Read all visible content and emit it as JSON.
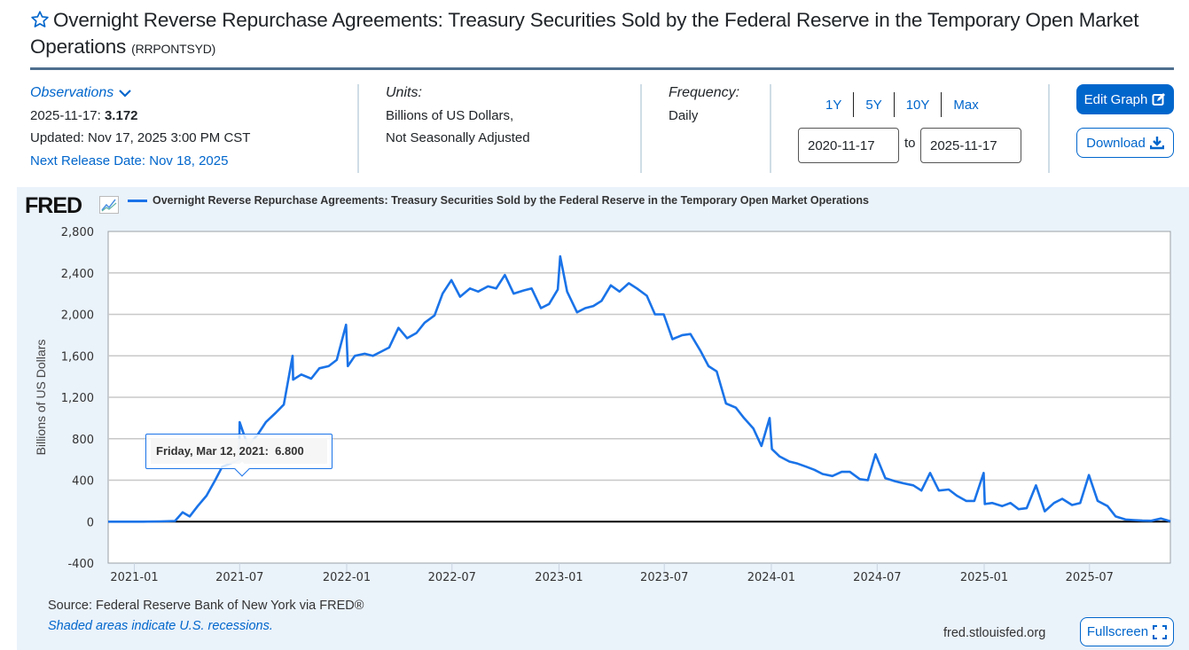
{
  "header": {
    "title": "Overnight Reverse Repurchase Agreements: Treasury Securities Sold by the Federal Reserve in the Temporary Open Market Operations",
    "series_id": "(RRPONTSYD)",
    "favorite_icon": "star-outline-icon"
  },
  "observations": {
    "heading": "Observations",
    "latest_date_label": "2025-11-17:",
    "latest_value": "3.172",
    "updated": "Updated: Nov 17, 2025 3:00 PM CST",
    "next_release": "Next Release Date: Nov 18, 2025"
  },
  "units": {
    "heading": "Units:",
    "line1": "Billions of US Dollars,",
    "line2": "Not Seasonally Adjusted"
  },
  "frequency": {
    "heading": "Frequency:",
    "value": "Daily"
  },
  "range": {
    "buttons": [
      "1Y",
      "5Y",
      "10Y",
      "Max"
    ],
    "start": "2020-11-17",
    "to_label": "to",
    "end": "2025-11-17"
  },
  "actions": {
    "edit_graph": "Edit Graph",
    "download": "Download",
    "fullscreen": "Fullscreen"
  },
  "graph": {
    "logo": "FRED",
    "source": "Source: Federal Reserve Bank of New York via FRED®",
    "recession_note": "Shaded areas indicate U.S. recessions.",
    "site": "fred.stlouisfed.org",
    "tooltip": {
      "date": "Friday, Mar 12, 2021:",
      "value": "6.800"
    },
    "colors": {
      "series": "#1a73e8",
      "accent": "#0066cc",
      "panel_bg": "#eaf2fa"
    }
  },
  "chart_data": {
    "type": "line",
    "title": "Overnight Reverse Repurchase Agreements: Treasury Securities Sold by the Federal Reserve in the Temporary Open Market Operations",
    "xlabel": "",
    "ylabel": "Billions of US Dollars",
    "xlim": [
      "2020-11-17",
      "2025-11-17"
    ],
    "ylim": [
      -400,
      2800
    ],
    "yticks": [
      -400,
      0,
      400,
      800,
      1200,
      1600,
      2000,
      2400,
      2800
    ],
    "ytick_labels": [
      "-400",
      "0",
      "400",
      "800",
      "1,200",
      "1,600",
      "2,000",
      "2,400",
      "2,800"
    ],
    "xticks": [
      "2021-01-01",
      "2021-07-01",
      "2022-01-01",
      "2022-07-01",
      "2023-01-01",
      "2023-07-01",
      "2024-01-01",
      "2024-07-01",
      "2025-01-01",
      "2025-07-01"
    ],
    "xtick_labels": [
      "2021-01",
      "2021-07",
      "2022-01",
      "2022-07",
      "2023-01",
      "2023-07",
      "2024-01",
      "2024-07",
      "2025-01",
      "2025-07"
    ],
    "grid": true,
    "legend": "top-left",
    "series": [
      {
        "name": "Overnight Reverse Repurchase Agreements: Treasury Securities Sold by the Federal Reserve in the Temporary Open Market Operations",
        "x": [
          "2020-11-17",
          "2020-12-15",
          "2021-01-15",
          "2021-02-15",
          "2021-03-12",
          "2021-03-25",
          "2021-04-06",
          "2021-04-20",
          "2021-05-05",
          "2021-05-20",
          "2021-06-01",
          "2021-06-15",
          "2021-06-30",
          "2021-07-01",
          "2021-07-15",
          "2021-08-01",
          "2021-08-15",
          "2021-09-01",
          "2021-09-15",
          "2021-09-30",
          "2021-10-01",
          "2021-10-15",
          "2021-11-01",
          "2021-11-15",
          "2021-12-01",
          "2021-12-15",
          "2021-12-31",
          "2022-01-03",
          "2022-01-15",
          "2022-02-01",
          "2022-02-15",
          "2022-03-01",
          "2022-03-15",
          "2022-03-31",
          "2022-04-15",
          "2022-05-01",
          "2022-05-15",
          "2022-06-01",
          "2022-06-15",
          "2022-06-30",
          "2022-07-15",
          "2022-08-01",
          "2022-08-15",
          "2022-09-01",
          "2022-09-15",
          "2022-09-30",
          "2022-10-15",
          "2022-11-01",
          "2022-11-15",
          "2022-12-01",
          "2022-12-15",
          "2022-12-30",
          "2023-01-03",
          "2023-01-15",
          "2023-02-01",
          "2023-02-15",
          "2023-03-01",
          "2023-03-15",
          "2023-03-31",
          "2023-04-15",
          "2023-05-01",
          "2023-05-15",
          "2023-06-01",
          "2023-06-15",
          "2023-06-30",
          "2023-07-15",
          "2023-08-01",
          "2023-08-15",
          "2023-09-01",
          "2023-09-15",
          "2023-09-29",
          "2023-10-15",
          "2023-11-01",
          "2023-11-15",
          "2023-12-01",
          "2023-12-15",
          "2023-12-29",
          "2024-01-02",
          "2024-01-15",
          "2024-02-01",
          "2024-02-15",
          "2024-03-01",
          "2024-03-15",
          "2024-03-29",
          "2024-04-15",
          "2024-05-01",
          "2024-05-15",
          "2024-06-01",
          "2024-06-15",
          "2024-06-28",
          "2024-07-15",
          "2024-08-01",
          "2024-08-15",
          "2024-09-01",
          "2024-09-15",
          "2024-09-30",
          "2024-10-15",
          "2024-11-01",
          "2024-11-15",
          "2024-12-01",
          "2024-12-15",
          "2024-12-31",
          "2025-01-02",
          "2025-01-15",
          "2025-02-01",
          "2025-02-15",
          "2025-03-01",
          "2025-03-15",
          "2025-03-31",
          "2025-04-15",
          "2025-05-01",
          "2025-05-15",
          "2025-06-01",
          "2025-06-15",
          "2025-06-30",
          "2025-07-15",
          "2025-08-01",
          "2025-08-15",
          "2025-09-01",
          "2025-09-15",
          "2025-09-30",
          "2025-10-15",
          "2025-11-01",
          "2025-11-17"
        ],
        "values": [
          0,
          0,
          0,
          2,
          6.8,
          90,
          50,
          150,
          250,
          400,
          530,
          560,
          600,
          960,
          730,
          840,
          960,
          1050,
          1130,
          1600,
          1370,
          1420,
          1380,
          1480,
          1500,
          1560,
          1900,
          1500,
          1600,
          1620,
          1600,
          1640,
          1680,
          1870,
          1770,
          1820,
          1920,
          1990,
          2200,
          2330,
          2170,
          2250,
          2220,
          2270,
          2250,
          2380,
          2200,
          2230,
          2250,
          2060,
          2100,
          2240,
          2560,
          2220,
          2020,
          2060,
          2080,
          2130,
          2280,
          2220,
          2300,
          2250,
          2180,
          2000,
          2000,
          1760,
          1800,
          1810,
          1650,
          1500,
          1450,
          1140,
          1100,
          1000,
          900,
          730,
          1000,
          700,
          630,
          580,
          560,
          530,
          500,
          460,
          440,
          480,
          480,
          410,
          400,
          650,
          420,
          390,
          370,
          350,
          300,
          470,
          300,
          310,
          250,
          200,
          200,
          470,
          170,
          180,
          150,
          180,
          120,
          130,
          350,
          100,
          180,
          220,
          160,
          180,
          450,
          200,
          150,
          50,
          20,
          15,
          10,
          8,
          30,
          3.172
        ]
      }
    ]
  }
}
